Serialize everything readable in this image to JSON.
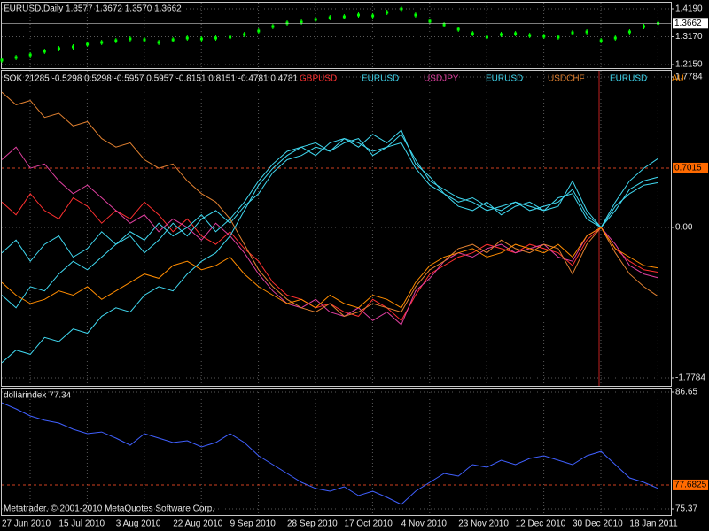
{
  "chart_data": [
    {
      "type": "candlestick",
      "title": "EURUSD,Daily  1.3577 1.3672 1.3570 1.3662",
      "color": "#00ff00",
      "values": [
        1.2312,
        1.2409,
        1.2506,
        1.2636,
        1.2733,
        1.2798,
        1.2895,
        1.296,
        1.3024,
        1.3089,
        1.3057,
        1.296,
        1.3057,
        1.3121,
        1.3089,
        1.3121,
        1.3154,
        1.3251,
        1.338,
        1.3542,
        1.3672,
        1.3704,
        1.3801,
        1.3866,
        1.3898,
        1.3963,
        1.3931,
        1.406,
        1.419,
        1.3963,
        1.3737,
        1.3607,
        1.3445,
        1.3283,
        1.3154,
        1.3251,
        1.3283,
        1.3218,
        1.3186,
        1.3154,
        1.3316,
        1.3348,
        1.3024,
        1.3121,
        1.3348,
        1.3542,
        1.3662
      ],
      "ylim": [
        1.215,
        1.419
      ],
      "yticks": [
        {
          "value": 1.419,
          "label": "1.4190"
        },
        {
          "value": 1.317,
          "label": "1.3170"
        },
        {
          "value": 1.215,
          "label": "1.2150"
        }
      ],
      "current_price": 1.3662,
      "grid": true
    },
    {
      "type": "line",
      "title": "SOK 21285 -0.5298 0.5298 -0.5957 0.5957 -0.8151 0.8151 -0.4781 0.4781",
      "series": [
        {
          "name": "GBPUSD",
          "color": "#ff3030",
          "values": [
            0.3,
            0.15,
            0.4,
            0.2,
            0.1,
            0.35,
            0.25,
            0.05,
            0.2,
            0.1,
            0.3,
            0.15,
            -0.05,
            0.1,
            -0.1,
            -0.2,
            -0.05,
            -0.25,
            -0.4,
            -0.65,
            -0.8,
            -0.85,
            -0.95,
            -0.9,
            -1,
            -1.05,
            -0.85,
            -0.95,
            -1.1,
            -0.8,
            -0.55,
            -0.45,
            -0.35,
            -0.3,
            -0.2,
            -0.25,
            -0.3,
            -0.2,
            -0.25,
            -0.3,
            -0.45,
            -0.15,
            0,
            -0.25,
            -0.4,
            -0.5,
            -0.5298
          ]
        },
        {
          "name": "EURUSD",
          "color": "#40d8f0",
          "values": [
            -0.3,
            -0.15,
            -0.4,
            -0.2,
            -0.1,
            -0.35,
            -0.25,
            -0.05,
            -0.2,
            -0.1,
            -0.3,
            -0.15,
            0.05,
            -0.1,
            0.1,
            0.2,
            0.05,
            0.25,
            0.4,
            0.65,
            0.8,
            0.85,
            0.95,
            0.9,
            1,
            1.05,
            0.85,
            0.95,
            1.1,
            0.8,
            0.55,
            0.45,
            0.35,
            0.3,
            0.2,
            0.25,
            0.3,
            0.2,
            0.25,
            0.3,
            0.45,
            0.15,
            0,
            0.25,
            0.4,
            0.5,
            0.5298
          ]
        },
        {
          "name": "USDJPY",
          "color": "#e040a0",
          "values": [
            0.8,
            0.95,
            0.7,
            0.75,
            0.55,
            0.4,
            0.5,
            0.35,
            0.2,
            0.05,
            0.15,
            -0.05,
            0.1,
            0,
            -0.15,
            0.05,
            -0.1,
            -0.3,
            -0.55,
            -0.75,
            -0.9,
            -0.95,
            -0.85,
            -1,
            -1.05,
            -0.95,
            -1.1,
            -1,
            -1.15,
            -0.75,
            -0.6,
            -0.4,
            -0.3,
            -0.35,
            -0.25,
            -0.2,
            -0.3,
            -0.25,
            -0.2,
            -0.35,
            -0.4,
            -0.1,
            0,
            -0.2,
            -0.45,
            -0.55,
            -0.5957
          ]
        },
        {
          "name": "EURUSD",
          "color": "#40d8f0",
          "values": [
            -0.8,
            -0.95,
            -0.7,
            -0.75,
            -0.55,
            -0.4,
            -0.5,
            -0.35,
            -0.2,
            -0.05,
            -0.15,
            0.05,
            -0.1,
            0,
            0.15,
            -0.05,
            0.1,
            0.3,
            0.55,
            0.75,
            0.9,
            0.95,
            0.85,
            1,
            1.05,
            0.95,
            1.1,
            1,
            1.15,
            0.75,
            0.6,
            0.4,
            0.3,
            0.35,
            0.25,
            0.2,
            0.3,
            0.25,
            0.2,
            0.35,
            0.4,
            0.1,
            0,
            0.2,
            0.45,
            0.55,
            0.5957
          ]
        },
        {
          "name": "USDCHF",
          "color": "#e08030",
          "values": [
            1.6,
            1.45,
            1.5,
            1.3,
            1.35,
            1.2,
            1.25,
            1.05,
            0.95,
            1,
            0.8,
            0.7,
            0.75,
            0.55,
            0.4,
            0.3,
            0.1,
            -0.2,
            -0.5,
            -0.7,
            -0.85,
            -0.95,
            -1,
            -0.9,
            -1.05,
            -1,
            -0.9,
            -0.95,
            -1,
            -0.7,
            -0.5,
            -0.4,
            -0.25,
            -0.2,
            -0.3,
            -0.15,
            -0.25,
            -0.3,
            -0.2,
            -0.25,
            -0.55,
            -0.2,
            0,
            -0.3,
            -0.55,
            -0.7,
            -0.8151
          ]
        },
        {
          "name": "EURUSD",
          "color": "#40d8f0",
          "values": [
            -1.6,
            -1.45,
            -1.5,
            -1.3,
            -1.35,
            -1.2,
            -1.25,
            -1.05,
            -0.95,
            -1,
            -0.8,
            -0.7,
            -0.75,
            -0.55,
            -0.4,
            -0.3,
            -0.1,
            0.2,
            0.5,
            0.7,
            0.85,
            0.95,
            1,
            0.9,
            1.05,
            1,
            0.9,
            0.95,
            1,
            0.7,
            0.5,
            0.4,
            0.25,
            0.2,
            0.3,
            0.15,
            0.25,
            0.3,
            0.2,
            0.25,
            0.55,
            0.2,
            0,
            0.3,
            0.55,
            0.7,
            0.8151
          ]
        },
        {
          "name": "AU",
          "color": "#ff8c00",
          "values": [
            -0.65,
            -0.8,
            -0.9,
            -0.85,
            -0.75,
            -0.8,
            -0.7,
            -0.85,
            -0.75,
            -0.65,
            -0.55,
            -0.6,
            -0.45,
            -0.4,
            -0.5,
            -0.45,
            -0.35,
            -0.55,
            -0.7,
            -0.8,
            -0.9,
            -0.85,
            -0.95,
            -0.8,
            -0.9,
            -0.95,
            -0.8,
            -0.85,
            -0.95,
            -0.65,
            -0.45,
            -0.35,
            -0.3,
            -0.25,
            -0.35,
            -0.3,
            -0.2,
            -0.25,
            -0.3,
            -0.2,
            -0.35,
            -0.1,
            0,
            -0.25,
            -0.35,
            -0.45,
            -0.4781
          ]
        }
      ],
      "ylim": [
        -1.7784,
        1.7784
      ],
      "yticks": [
        1.7784,
        {
          "value": 0,
          "label": "0.00"
        },
        -1.7784
      ],
      "level": 0.7015,
      "grid": true
    },
    {
      "type": "line",
      "title": "dollarindex 77.34",
      "footer": "Metatrader, © 2001-2010 MetaQuotes Software Corp.",
      "series": [
        {
          "name": "dollarindex",
          "color": "#4060ff",
          "values": [
            85.62,
            85.03,
            84.34,
            83.92,
            83.66,
            83.06,
            82.63,
            82.8,
            82.21,
            81.52,
            82.63,
            82.21,
            81.78,
            81.95,
            81.35,
            81.78,
            82.63,
            81.78,
            80.5,
            79.64,
            78.79,
            77.93,
            77.34,
            77.08,
            77.51,
            76.65,
            77.08,
            76.48,
            75.8,
            77.08,
            77.93,
            78.79,
            78.53,
            79.64,
            79.39,
            80.07,
            79.64,
            80.24,
            80.5,
            80.07,
            79.64,
            80.5,
            80.92,
            79.64,
            78.36,
            77.93,
            77.34
          ]
        }
      ],
      "ylim": [
        75.37,
        86.65
      ],
      "yticks": [
        86.65,
        75.37
      ],
      "level": 77.6825,
      "grid": true,
      "categories": [
        "27 Jun 2010",
        null,
        null,
        null,
        "15 Jul 2010",
        null,
        null,
        null,
        "3 Aug 2010",
        null,
        null,
        null,
        "22 Aug 2010",
        null,
        null,
        null,
        "9 Sep 2010",
        null,
        null,
        null,
        "28 Sep 2010",
        null,
        null,
        null,
        "17 Oct 2010",
        null,
        null,
        null,
        "4 Nov 2010",
        null,
        null,
        null,
        "23 Nov 2010",
        null,
        null,
        null,
        "12 Dec 2010",
        null,
        null,
        null,
        "30 Dec 2010",
        null,
        null,
        null,
        "18 Jan 2011",
        null,
        null
      ]
    }
  ]
}
